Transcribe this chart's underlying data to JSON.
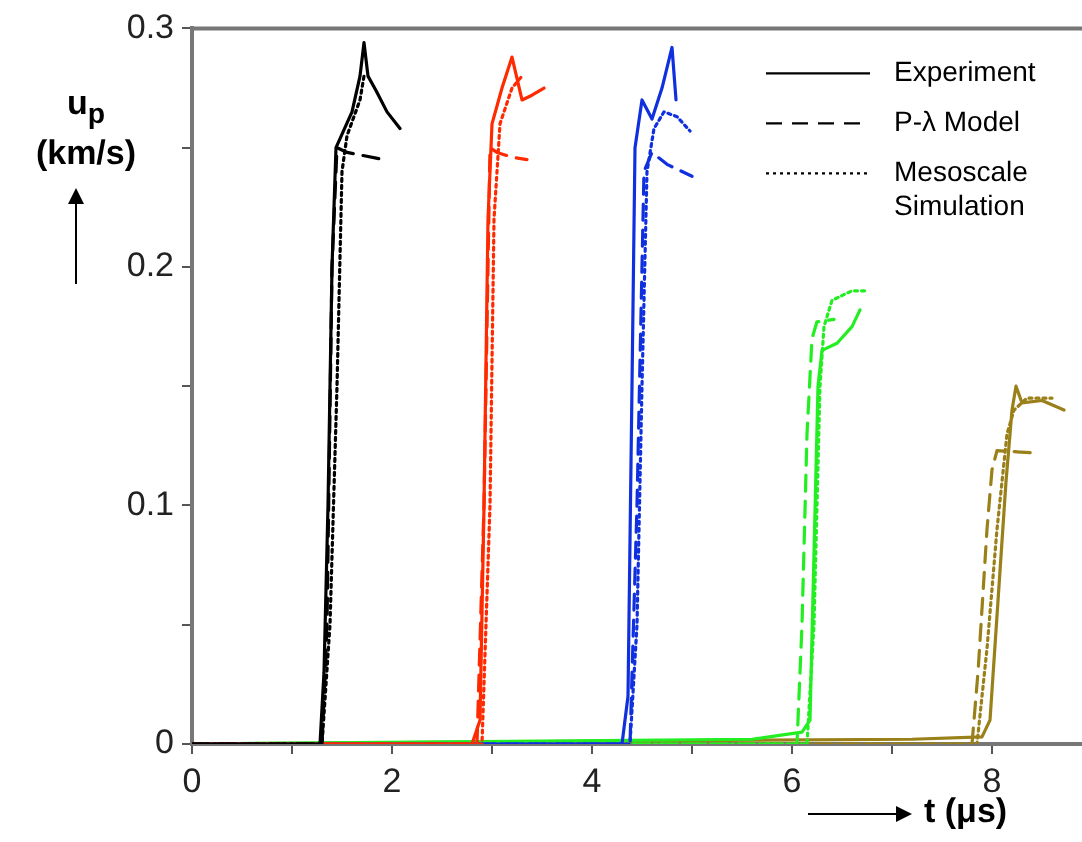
{
  "chart_data": {
    "type": "line",
    "xlabel": "t (μs)",
    "ylabel": "u$_{p}$ (km/s)",
    "xlim": [
      0,
      8.9
    ],
    "ylim": [
      0,
      0.3
    ],
    "xticks": [
      0,
      {
        "value": 1,
        "label": null
      },
      2,
      {
        "value": 3,
        "label": null
      },
      4,
      {
        "value": 5,
        "label": null
      },
      6,
      {
        "value": 7,
        "label": null
      },
      8
    ],
    "yticks": [
      0,
      {
        "value": 0.05,
        "label": null
      },
      0.1,
      {
        "value": 0.15,
        "label": null
      },
      0.2,
      {
        "value": 0.25,
        "label": null
      },
      0.3
    ],
    "grid": false,
    "legend": "top right",
    "marker": "none",
    "series": [
      {
        "name": "Experiment",
        "color": "#000000",
        "line_style": "solid",
        "x": [
          0,
          1.28,
          1.32,
          1.36,
          1.4,
          1.44,
          1.6,
          1.68,
          1.72,
          1.76,
          1.84,
          1.95,
          2.08
        ],
        "values": [
          0,
          0,
          0.03,
          0.1,
          0.2,
          0.25,
          0.265,
          0.28,
          0.294,
          0.28,
          0.274,
          0.265,
          0.258
        ]
      },
      {
        "name": "P-λ Model",
        "color": "#000000",
        "line_style": "dashed",
        "x": [
          0,
          1.3,
          1.35,
          1.4,
          1.45,
          1.55,
          1.92
        ],
        "values": [
          0,
          0,
          0.05,
          0.2,
          0.25,
          0.248,
          0.245
        ]
      },
      {
        "name": "Mesoscale Simulation",
        "color": "#000000",
        "line_style": "dotted",
        "x": [
          0,
          1.3,
          1.38,
          1.45,
          1.5,
          1.55,
          1.68,
          1.72
        ],
        "values": [
          0,
          0,
          0.05,
          0.15,
          0.24,
          0.255,
          0.27,
          0.28
        ]
      },
      {
        "color": "#ff2a00",
        "line_style": "solid",
        "x": [
          0,
          2.8,
          2.88,
          2.92,
          2.96,
          3.0,
          3.1,
          3.2,
          3.3,
          3.4,
          3.52
        ],
        "values": [
          0,
          0,
          0.01,
          0.1,
          0.22,
          0.26,
          0.275,
          0.288,
          0.27,
          0.272,
          0.275
        ]
      },
      {
        "color": "#ff2a00",
        "line_style": "dashed",
        "x": [
          0,
          2.85,
          2.92,
          2.98,
          3.05,
          3.2,
          3.35
        ],
        "values": [
          0,
          0,
          0.1,
          0.25,
          0.248,
          0.246,
          0.245
        ]
      },
      {
        "color": "#ff2a00",
        "line_style": "dotted",
        "x": [
          0,
          2.9,
          2.98,
          3.02,
          3.08,
          3.2,
          3.3
        ],
        "values": [
          0,
          0,
          0.1,
          0.22,
          0.26,
          0.275,
          0.28
        ]
      },
      {
        "color": "#1030e0",
        "line_style": "solid",
        "x": [
          0,
          4.3,
          4.36,
          4.4,
          4.43,
          4.5,
          4.6,
          4.7,
          4.8,
          4.84
        ],
        "values": [
          0,
          0,
          0.02,
          0.15,
          0.25,
          0.27,
          0.262,
          0.275,
          0.292,
          0.27
        ]
      },
      {
        "color": "#1030e0",
        "line_style": "dashed",
        "x": [
          0,
          4.38,
          4.45,
          4.52,
          4.6,
          4.75,
          5.0
        ],
        "values": [
          0,
          0,
          0.1,
          0.24,
          0.248,
          0.243,
          0.238
        ]
      },
      {
        "color": "#1030e0",
        "line_style": "dotted",
        "x": [
          0,
          4.38,
          4.45,
          4.5,
          4.55,
          4.62,
          4.72,
          4.85,
          4.98
        ],
        "values": [
          0,
          0,
          0.05,
          0.15,
          0.24,
          0.258,
          0.265,
          0.263,
          0.257
        ]
      },
      {
        "color": "#22ee22",
        "line_style": "solid",
        "x": [
          0,
          5.6,
          6.1,
          6.18,
          6.22,
          6.26,
          6.3,
          6.45,
          6.6,
          6.68
        ],
        "values": [
          0,
          0.002,
          0.005,
          0.01,
          0.08,
          0.15,
          0.165,
          0.168,
          0.175,
          0.182
        ]
      },
      {
        "color": "#22ee22",
        "line_style": "dashed",
        "x": [
          0,
          6.05,
          6.1,
          6.15,
          6.2,
          6.25,
          6.42
        ],
        "values": [
          0,
          0,
          0.05,
          0.13,
          0.17,
          0.177,
          0.178
        ]
      },
      {
        "color": "#22ee22",
        "line_style": "dotted",
        "x": [
          0,
          6.15,
          6.22,
          6.28,
          6.32,
          6.4,
          6.6,
          6.74
        ],
        "values": [
          0,
          0,
          0.05,
          0.15,
          0.175,
          0.186,
          0.19,
          0.19
        ]
      },
      {
        "color": "#9a8018",
        "line_style": "solid",
        "x": [
          0,
          7.2,
          7.9,
          7.98,
          8.06,
          8.14,
          8.2,
          8.24,
          8.3,
          8.5,
          8.72
        ],
        "values": [
          0,
          0.002,
          0.003,
          0.01,
          0.06,
          0.11,
          0.14,
          0.15,
          0.143,
          0.144,
          0.14
        ]
      },
      {
        "color": "#9a8018",
        "line_style": "dashed",
        "x": [
          0,
          7.8,
          7.86,
          7.95,
          8.0,
          8.05,
          8.43
        ],
        "values": [
          0,
          0,
          0.03,
          0.09,
          0.115,
          0.123,
          0.122
        ]
      },
      {
        "color": "#9a8018",
        "line_style": "dotted",
        "x": [
          0,
          7.85,
          7.95,
          8.05,
          8.15,
          8.22,
          8.35,
          8.6
        ],
        "values": [
          0,
          0,
          0.04,
          0.09,
          0.13,
          0.14,
          0.145,
          0.145
        ]
      }
    ]
  }
}
